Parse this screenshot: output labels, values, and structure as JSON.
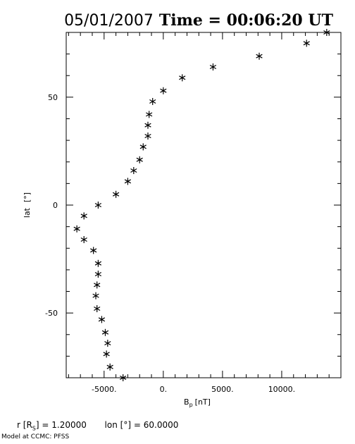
{
  "title": {
    "date": "05/01/2007",
    "time_text": "Time = 00:06:20 UT"
  },
  "footer": {
    "r_label": "r",
    "r_unit": "R",
    "r_unit_sub": "S",
    "r_value": "= 1.20000",
    "lon_label": "lon",
    "lon_unit": "°",
    "lon_value": "= 60.0000",
    "model": "Model at CCMC: PFSS"
  },
  "chart_data": {
    "type": "scatter",
    "marker": "asterisk",
    "xlabel": "B",
    "xlabel_sub": "p",
    "xlabel_unit": "[nT]",
    "ylabel": "lat",
    "ylabel_unit": "[°]",
    "xlim": [
      -8200,
      15000
    ],
    "ylim": [
      -80,
      80
    ],
    "xticks": [
      -5000,
      0,
      5000,
      10000
    ],
    "xtick_labels": [
      "-5000.",
      "0.",
      "5000.",
      "10000."
    ],
    "yticks": [
      -50,
      0,
      50
    ],
    "ytick_labels": [
      "-50",
      "0",
      "50"
    ],
    "x_minor_step": 1000,
    "y_minor_step": 10,
    "grid": false,
    "x": [
      -3400,
      -4500,
      -4800,
      -4700,
      -4900,
      -5200,
      -5600,
      -5700,
      -5600,
      -5500,
      -5500,
      -5900,
      -6700,
      -7300,
      -6700,
      -5500,
      -4000,
      -3000,
      -2500,
      -2000,
      -1700,
      -1300,
      -1300,
      -1200,
      -900,
      0,
      1600,
      4200,
      8100,
      12100,
      13800
    ],
    "y": [
      -80,
      -75,
      -69,
      -64,
      -59,
      -53,
      -48,
      -42,
      -37,
      -32,
      -27,
      -21,
      -16,
      -11,
      -5,
      0,
      5,
      11,
      16,
      21,
      27,
      32,
      37,
      42,
      48,
      53,
      59,
      64,
      69,
      75,
      80
    ]
  }
}
